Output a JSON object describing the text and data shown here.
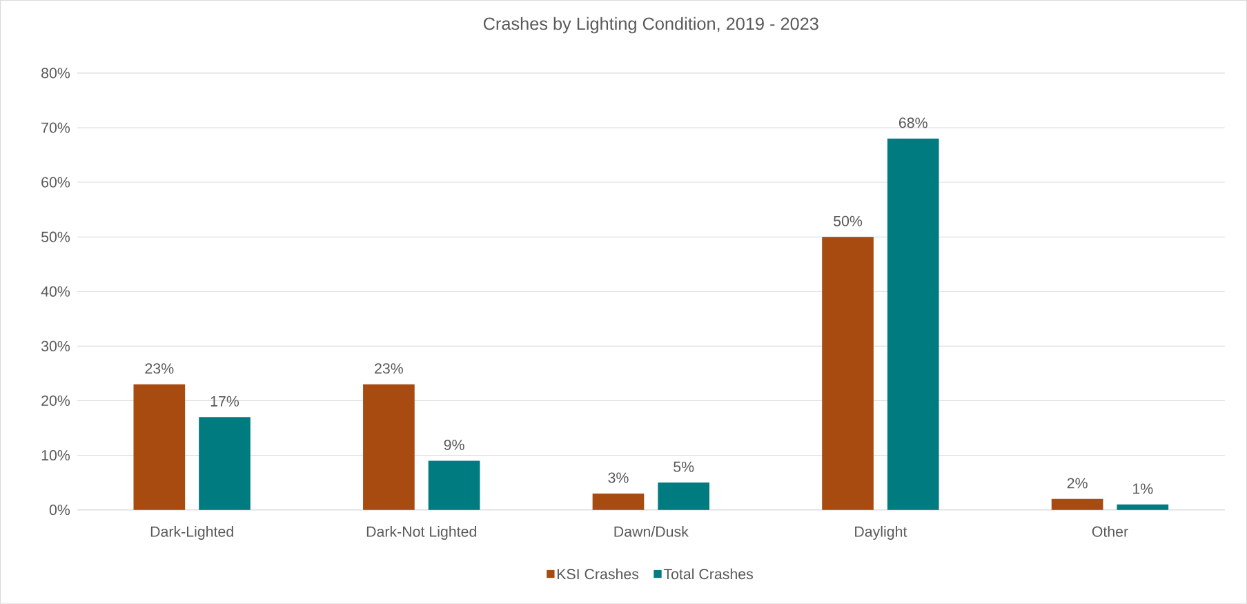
{
  "chart_data": {
    "type": "bar",
    "title": "Crashes by Lighting Condition, 2019 - 2023",
    "categories": [
      "Dark-Lighted",
      "Dark-Not Lighted",
      "Dawn/Dusk",
      "Daylight",
      "Other"
    ],
    "series": [
      {
        "name": "KSI Crashes",
        "color": "#a84b10",
        "values": [
          23,
          23,
          3,
          50,
          2
        ],
        "value_labels": [
          "23%",
          "23%",
          "3%",
          "50%",
          "2%"
        ]
      },
      {
        "name": "Total Crashes",
        "color": "#007c80",
        "values": [
          17,
          9,
          5,
          68,
          1
        ],
        "value_labels": [
          "17%",
          "9%",
          "5%",
          "68%",
          "1%"
        ]
      }
    ],
    "ylim": [
      0,
      80
    ],
    "yticks": [
      {
        "value": 0,
        "label": "0%"
      },
      {
        "value": 10,
        "label": "10%"
      },
      {
        "value": 20,
        "label": "20%"
      },
      {
        "value": 30,
        "label": "30%"
      },
      {
        "value": 40,
        "label": "40%"
      },
      {
        "value": 50,
        "label": "50%"
      },
      {
        "value": 60,
        "label": "60%"
      },
      {
        "value": 70,
        "label": "70%"
      },
      {
        "value": 80,
        "label": "80%"
      }
    ],
    "grid": "y",
    "legend": "bottom"
  }
}
